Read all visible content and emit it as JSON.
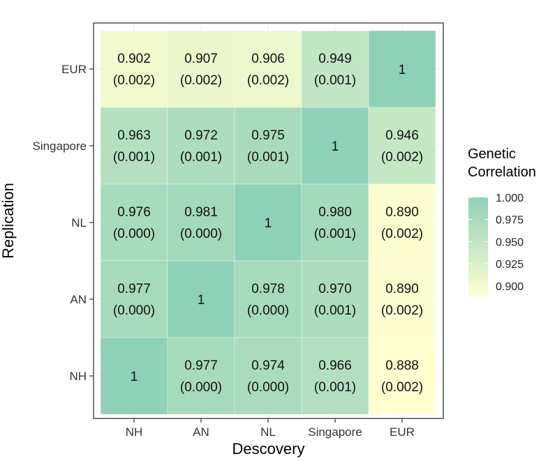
{
  "chart_data": {
    "type": "heatmap",
    "xlabel": "Descovery",
    "ylabel": "Replication",
    "x_categories": [
      "NH",
      "AN",
      "NL",
      "Singapore",
      "EUR"
    ],
    "y_categories": [
      "NH",
      "AN",
      "NL",
      "Singapore",
      "EUR"
    ],
    "cells": [
      {
        "x": "NH",
        "y": "EUR",
        "value": 0.902,
        "value_label": "0.902",
        "se_label": "(0.002)"
      },
      {
        "x": "AN",
        "y": "EUR",
        "value": 0.907,
        "value_label": "0.907",
        "se_label": "(0.002)"
      },
      {
        "x": "NL",
        "y": "EUR",
        "value": 0.906,
        "value_label": "0.906",
        "se_label": "(0.002)"
      },
      {
        "x": "Singapore",
        "y": "EUR",
        "value": 0.949,
        "value_label": "0.949",
        "se_label": "(0.001)"
      },
      {
        "x": "EUR",
        "y": "EUR",
        "value": 1.0,
        "value_label": "1",
        "se_label": ""
      },
      {
        "x": "NH",
        "y": "Singapore",
        "value": 0.963,
        "value_label": "0.963",
        "se_label": "(0.001)"
      },
      {
        "x": "AN",
        "y": "Singapore",
        "value": 0.972,
        "value_label": "0.972",
        "se_label": "(0.001)"
      },
      {
        "x": "NL",
        "y": "Singapore",
        "value": 0.975,
        "value_label": "0.975",
        "se_label": "(0.001)"
      },
      {
        "x": "Singapore",
        "y": "Singapore",
        "value": 1.0,
        "value_label": "1",
        "se_label": ""
      },
      {
        "x": "EUR",
        "y": "Singapore",
        "value": 0.946,
        "value_label": "0.946",
        "se_label": "(0.002)"
      },
      {
        "x": "NH",
        "y": "NL",
        "value": 0.976,
        "value_label": "0.976",
        "se_label": "(0.000)"
      },
      {
        "x": "AN",
        "y": "NL",
        "value": 0.981,
        "value_label": "0.981",
        "se_label": "(0.000)"
      },
      {
        "x": "NL",
        "y": "NL",
        "value": 1.0,
        "value_label": "1",
        "se_label": ""
      },
      {
        "x": "Singapore",
        "y": "NL",
        "value": 0.98,
        "value_label": "0.980",
        "se_label": "(0.001)"
      },
      {
        "x": "EUR",
        "y": "NL",
        "value": 0.89,
        "value_label": "0.890",
        "se_label": "(0.002)"
      },
      {
        "x": "NH",
        "y": "AN",
        "value": 0.977,
        "value_label": "0.977",
        "se_label": "(0.000)"
      },
      {
        "x": "AN",
        "y": "AN",
        "value": 1.0,
        "value_label": "1",
        "se_label": ""
      },
      {
        "x": "NL",
        "y": "AN",
        "value": 0.978,
        "value_label": "0.978",
        "se_label": "(0.000)"
      },
      {
        "x": "Singapore",
        "y": "AN",
        "value": 0.97,
        "value_label": "0.970",
        "se_label": "(0.001)"
      },
      {
        "x": "EUR",
        "y": "AN",
        "value": 0.89,
        "value_label": "0.890",
        "se_label": "(0.002)"
      },
      {
        "x": "NH",
        "y": "NH",
        "value": 1.0,
        "value_label": "1",
        "se_label": ""
      },
      {
        "x": "AN",
        "y": "NH",
        "value": 0.977,
        "value_label": "0.977",
        "se_label": "(0.000)"
      },
      {
        "x": "NL",
        "y": "NH",
        "value": 0.974,
        "value_label": "0.974",
        "se_label": "(0.000)"
      },
      {
        "x": "Singapore",
        "y": "NH",
        "value": 0.966,
        "value_label": "0.966",
        "se_label": "(0.001)"
      },
      {
        "x": "EUR",
        "y": "NH",
        "value": 0.888,
        "value_label": "0.888",
        "se_label": "(0.002)"
      }
    ],
    "legend": {
      "title_lines": [
        "Genetic",
        "Correlation"
      ],
      "placement": "right",
      "breaks": [
        {
          "value": 1.0,
          "label": "1.000"
        },
        {
          "value": 0.975,
          "label": "0.975"
        },
        {
          "value": 0.95,
          "label": "0.950"
        },
        {
          "value": 0.925,
          "label": "0.925"
        },
        {
          "value": 0.9,
          "label": "0.900"
        }
      ]
    },
    "color_scale": {
      "low": "#ffffd0",
      "high": "#8fd1b8",
      "domain": [
        0.888,
        1.0
      ]
    },
    "grid": true,
    "panel_border_color": "#333333",
    "gridline_color": "#ebebeb"
  }
}
